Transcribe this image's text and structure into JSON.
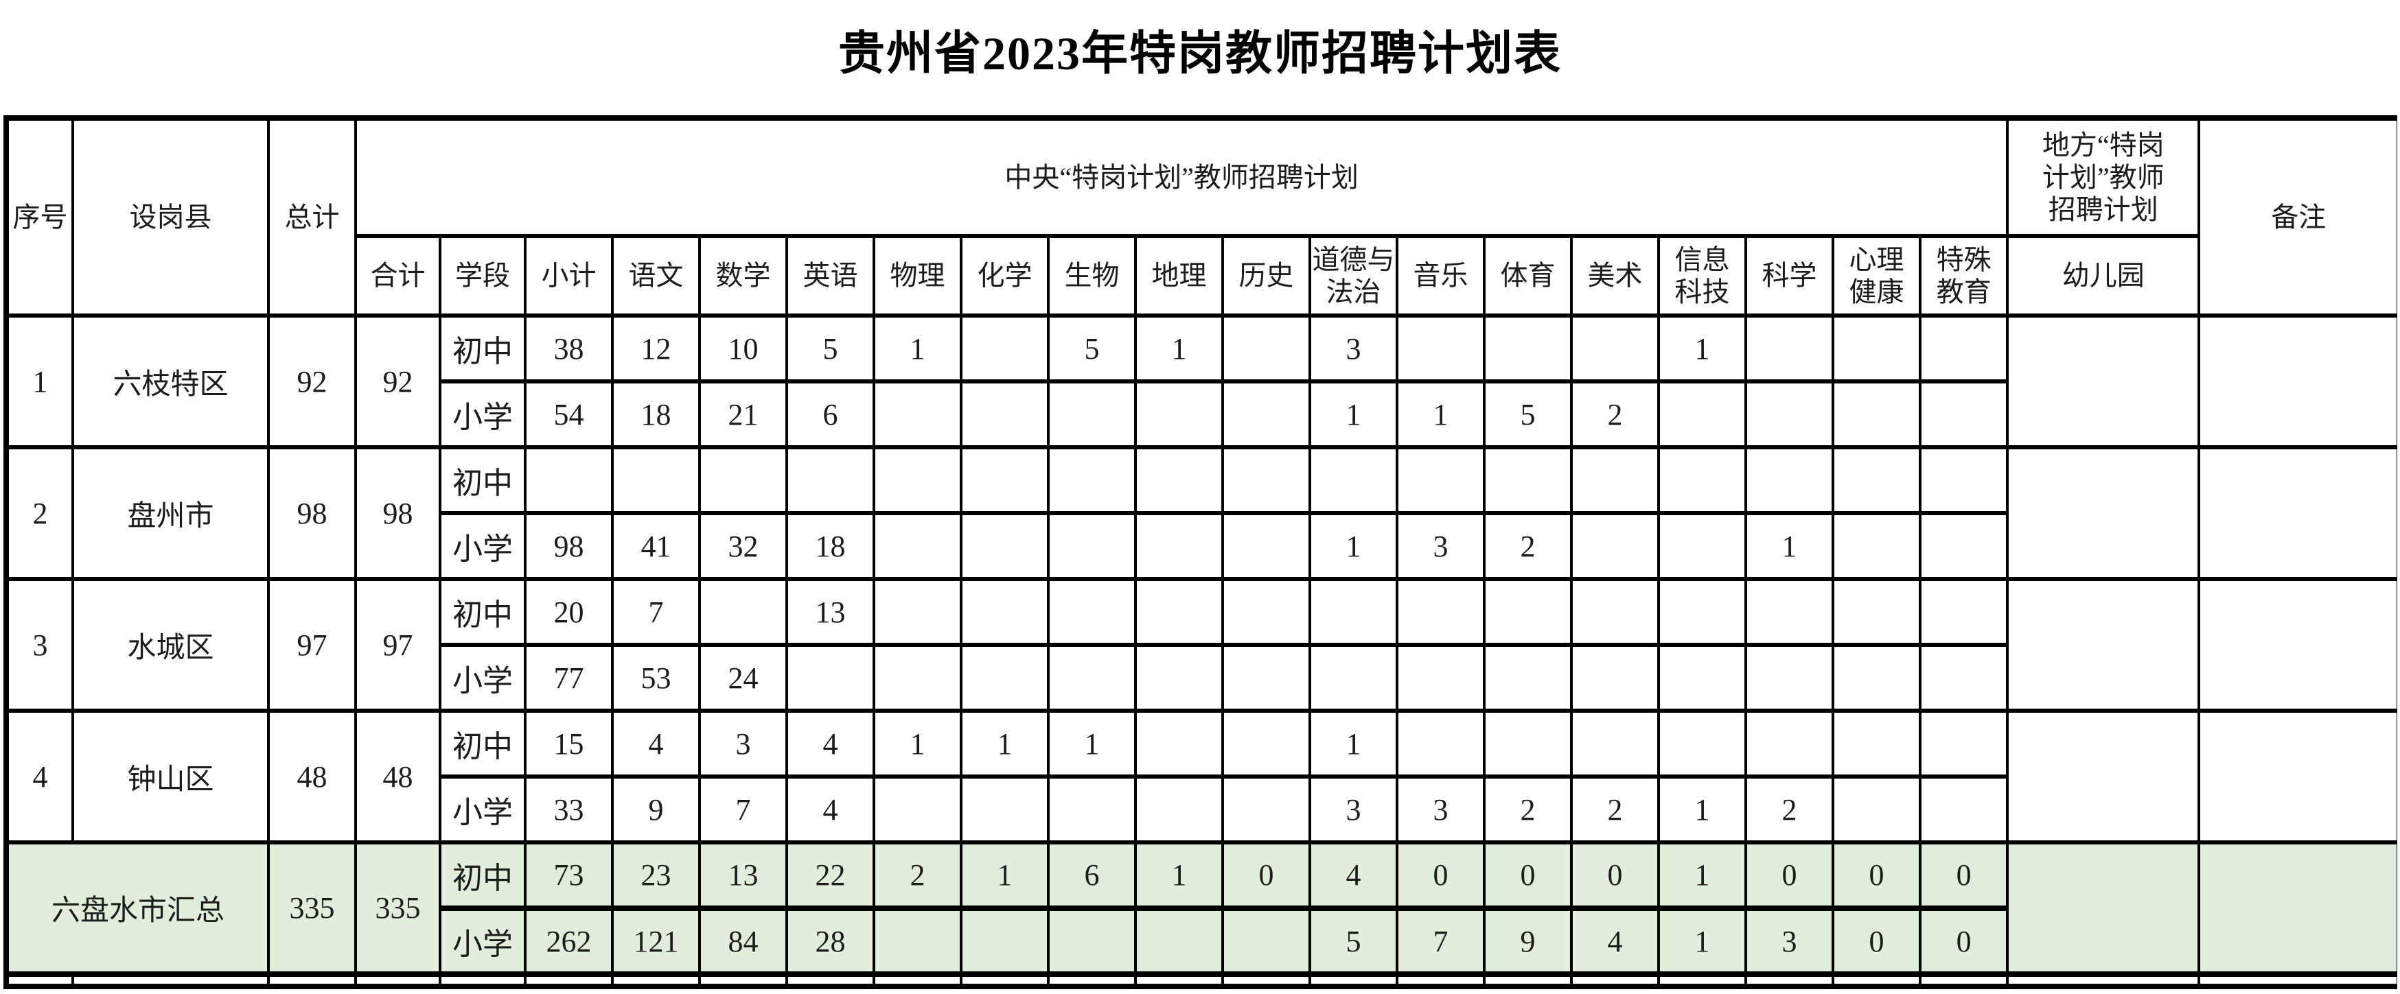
{
  "title": "贵州省2023年特岗教师招聘计划表",
  "colors": {
    "summary_row_bg": "#e2eedc",
    "border": "#000000",
    "text": "#1c1c1c",
    "page_bg": "#ffffff"
  },
  "table": {
    "headers": {
      "xuhao": "序号",
      "shegangxian": "设岗县",
      "zongji": "总计",
      "central_group": "中央“特岗计划”教师招聘计划",
      "heji": "合计",
      "xueduan": "学段",
      "subjects": [
        "小计",
        "语文",
        "数学",
        "英语",
        "物理",
        "化学",
        "生物",
        "地理",
        "历史",
        "道德与\n法治",
        "音乐",
        "体育",
        "美术",
        "信息\n科技",
        "科学",
        "心理\n健康",
        "特殊\n教育"
      ],
      "local_group": "地方“特岗\n计划”教师\n招聘计划",
      "youeryuan": "幼儿园",
      "beizhu": "备注"
    },
    "stage_labels": {
      "junior": "初中",
      "primary": "小学"
    },
    "rows": [
      {
        "seq": "1",
        "county": "六枝特区",
        "total": "92",
        "heji": "92",
        "summary": false,
        "junior": [
          "38",
          "12",
          "10",
          "5",
          "1",
          "",
          "5",
          "1",
          "",
          "3",
          "",
          "",
          "",
          "1",
          "",
          "",
          ""
        ],
        "primary": [
          "54",
          "18",
          "21",
          "6",
          "",
          "",
          "",
          "",
          "",
          "1",
          "1",
          "5",
          "2",
          "",
          "",
          "",
          ""
        ],
        "kindergarten": "",
        "remark": ""
      },
      {
        "seq": "2",
        "county": "盘州市",
        "total": "98",
        "heji": "98",
        "summary": false,
        "junior": [
          "",
          "",
          "",
          "",
          "",
          "",
          "",
          "",
          "",
          "",
          "",
          "",
          "",
          "",
          "",
          "",
          ""
        ],
        "primary": [
          "98",
          "41",
          "32",
          "18",
          "",
          "",
          "",
          "",
          "",
          "1",
          "3",
          "2",
          "",
          "",
          "1",
          "",
          ""
        ],
        "kindergarten": "",
        "remark": ""
      },
      {
        "seq": "3",
        "county": "水城区",
        "total": "97",
        "heji": "97",
        "summary": false,
        "junior": [
          "20",
          "7",
          "",
          "13",
          "",
          "",
          "",
          "",
          "",
          "",
          "",
          "",
          "",
          "",
          "",
          "",
          ""
        ],
        "primary": [
          "77",
          "53",
          "24",
          "",
          "",
          "",
          "",
          "",
          "",
          "",
          "",
          "",
          "",
          "",
          "",
          "",
          ""
        ],
        "kindergarten": "",
        "remark": ""
      },
      {
        "seq": "4",
        "county": "钟山区",
        "total": "48",
        "heji": "48",
        "summary": false,
        "junior": [
          "15",
          "4",
          "3",
          "4",
          "1",
          "1",
          "1",
          "",
          "",
          "1",
          "",
          "",
          "",
          "",
          "",
          "",
          ""
        ],
        "primary": [
          "33",
          "9",
          "7",
          "4",
          "",
          "",
          "",
          "",
          "",
          "3",
          "3",
          "2",
          "2",
          "1",
          "2",
          "",
          ""
        ],
        "kindergarten": "",
        "remark": ""
      },
      {
        "seq": "",
        "county": "六盘水市汇总",
        "total": "335",
        "heji": "335",
        "summary": true,
        "junior": [
          "73",
          "23",
          "13",
          "22",
          "2",
          "1",
          "6",
          "1",
          "0",
          "4",
          "0",
          "0",
          "0",
          "1",
          "0",
          "0",
          "0"
        ],
        "primary": [
          "262",
          "121",
          "84",
          "28",
          "",
          "",
          "",
          "",
          "",
          "5",
          "7",
          "9",
          "4",
          "1",
          "3",
          "0",
          "0"
        ],
        "kindergarten": "",
        "remark": ""
      }
    ]
  }
}
